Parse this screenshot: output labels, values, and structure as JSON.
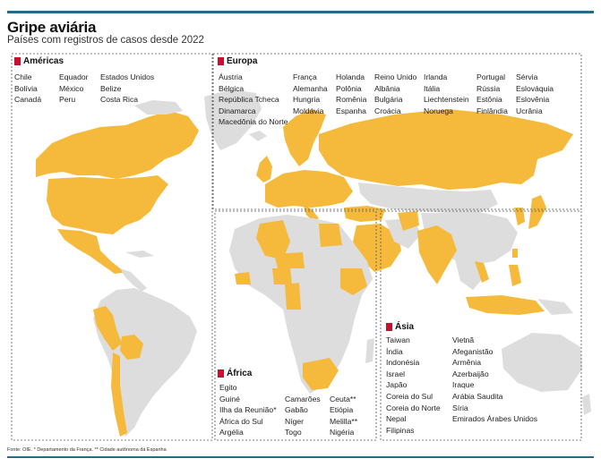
{
  "title": "Gripe aviária",
  "subtitle": "Países com registros de casos desde 2022",
  "footer": "Fonte: OIE. * Departamento da França. ** Cidade autônoma da Espanha",
  "colors": {
    "affected": "#f5b93b",
    "unaffected": "#dddddd",
    "accent": "#c8102e",
    "rule": "#1f6d8c"
  },
  "regions": {
    "americas": {
      "label": "Américas",
      "columns": [
        [
          "Chile",
          "Bolívia",
          "Canadá"
        ],
        [
          "Equador",
          "México",
          "Peru"
        ],
        [
          "Estados Unidos",
          "Belize",
          "Costa Rica"
        ]
      ]
    },
    "europe": {
      "label": "Europa",
      "columns": [
        [
          "Áustria",
          "Bélgica",
          "República Tcheca",
          "Dinamarca",
          "Macedônia do Norte"
        ],
        [
          "França",
          "Alemanha",
          "Hungria",
          "Moldávia"
        ],
        [
          "Holanda",
          "Polônia",
          "Romênia",
          "Espanha"
        ],
        [
          "Reino Unido",
          "Albânia",
          "Bulgária",
          "Croácia"
        ],
        [
          "Irlanda",
          "Itália",
          "Liechtenstein",
          "Noruega"
        ],
        [
          "Portugal",
          "Rússia",
          "Estônia",
          "Finlândia"
        ],
        [
          "Sérvia",
          "Eslováquia",
          "Eslovênia",
          "Ucrânia"
        ]
      ]
    },
    "africa": {
      "label": "África",
      "columns": [
        [
          "Egito",
          "Guiné",
          "Ilha da Reunião*",
          "África do Sul",
          "Argélia"
        ],
        [
          "Camarões",
          "Gabão",
          "Níger",
          "Togo"
        ],
        [
          "Ceuta**",
          "Etiópia",
          "Melilla**",
          "Nigéria"
        ]
      ]
    },
    "asia": {
      "label": "Ásia",
      "columns": [
        [
          "Taiwan",
          "Índia",
          "Indonésia",
          "Israel",
          "Japão",
          "Coreia do Sul",
          "Coreia do Norte",
          "Nepal",
          "Filipinas"
        ],
        [
          "Vietnã",
          "Afeganistão",
          "Armênia",
          "Azerbaijão",
          "Iraque",
          "Arábia Saudita",
          "Síria",
          "Emirados Árabes Unidos"
        ]
      ]
    }
  }
}
